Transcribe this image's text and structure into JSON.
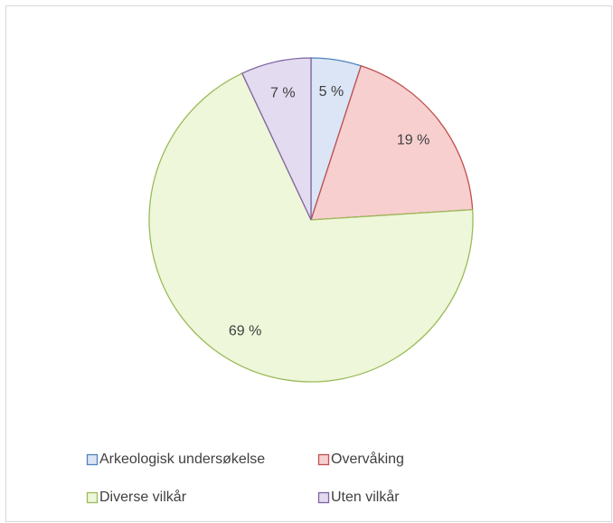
{
  "chart_data": {
    "type": "pie",
    "categories": [
      "Arkeologisk undersøkelse",
      "Overvåking",
      "Diverse vilkår",
      "Uten vilkår"
    ],
    "values": [
      5,
      19,
      69,
      7
    ],
    "value_labels": [
      "5 %",
      "19 %",
      "69 %",
      "7 %"
    ],
    "colors": [
      "#dbe5f5",
      "#f7cfcf",
      "#eef7d9",
      "#e3dbef"
    ],
    "edge_colors": [
      "#4f81bd",
      "#c0504d",
      "#9bbb59",
      "#8064a2"
    ],
    "legend": "bottom"
  }
}
